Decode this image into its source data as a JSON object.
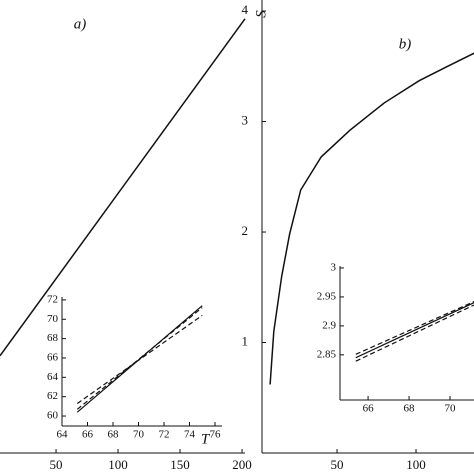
{
  "chart_data": [
    {
      "type": "line",
      "title": "a)",
      "x_label": "T",
      "xlim": [
        4.8,
        202.4
      ],
      "ylim": [
        0,
        4.1
      ],
      "xticks": [
        50,
        100,
        150,
        200
      ],
      "yticks": [],
      "axes": [
        "bottom"
      ],
      "series": [
        {
          "color": "#111",
          "dashed": false,
          "x": [
            4.8,
            202.4
          ],
          "values": [
            0.88,
            3.93
          ]
        }
      ]
    },
    {
      "type": "line",
      "xlim": [
        64,
        76.55
      ],
      "ylim": [
        58.97,
        72.3
      ],
      "xticks": [
        64,
        66,
        68,
        70,
        72,
        74,
        76
      ],
      "yticks": [
        60,
        62,
        64,
        66,
        68,
        70,
        72
      ],
      "axes": [
        "left",
        "bottom"
      ],
      "series": [
        {
          "color": "#111",
          "dashed": false,
          "x": [
            65.2,
            75
          ],
          "values": [
            60.4,
            71.4
          ]
        },
        {
          "color": "#111",
          "dashed": true,
          "x": [
            65.2,
            75
          ],
          "values": [
            61.3,
            70.4
          ]
        },
        {
          "color": "#111",
          "dashed": true,
          "x": [
            65.2,
            75
          ],
          "values": [
            60.7,
            71.2
          ]
        }
      ]
    },
    {
      "type": "line",
      "title": "b)",
      "y_label": "S",
      "xlim": [
        2.5,
        136.7
      ],
      "ylim": [
        0,
        4.1
      ],
      "xticks": [
        50,
        100
      ],
      "yticks": [
        1,
        2,
        3,
        4
      ],
      "axes": [
        "left",
        "bottom"
      ],
      "series": [
        {
          "color": "#111",
          "dashed": false,
          "x": [
            7.6,
            10,
            15,
            20,
            27,
            40,
            58,
            80,
            102,
            120,
            137
          ],
          "values": [
            0.62,
            1.1,
            1.6,
            1.98,
            2.38,
            2.68,
            2.92,
            3.17,
            3.37,
            3.5,
            3.62
          ]
        }
      ]
    },
    {
      "type": "line",
      "xlim": [
        64.63,
        71.17
      ],
      "ylim": [
        2.772,
        3.0034
      ],
      "xticks": [
        66,
        68,
        70
      ],
      "yticks": [
        2.85,
        2.9,
        2.95,
        3
      ],
      "axes": [
        "left",
        "bottom"
      ],
      "series": [
        {
          "color": "#111",
          "dashed": false,
          "x": [
            65.4,
            71.17
          ],
          "values": [
            2.845,
            2.94
          ]
        },
        {
          "color": "#111",
          "dashed": true,
          "x": [
            65.4,
            71.17
          ],
          "values": [
            2.839,
            2.936
          ]
        },
        {
          "color": "#111",
          "dashed": true,
          "x": [
            65.4,
            71.17
          ],
          "values": [
            2.851,
            2.942
          ]
        }
      ]
    }
  ]
}
